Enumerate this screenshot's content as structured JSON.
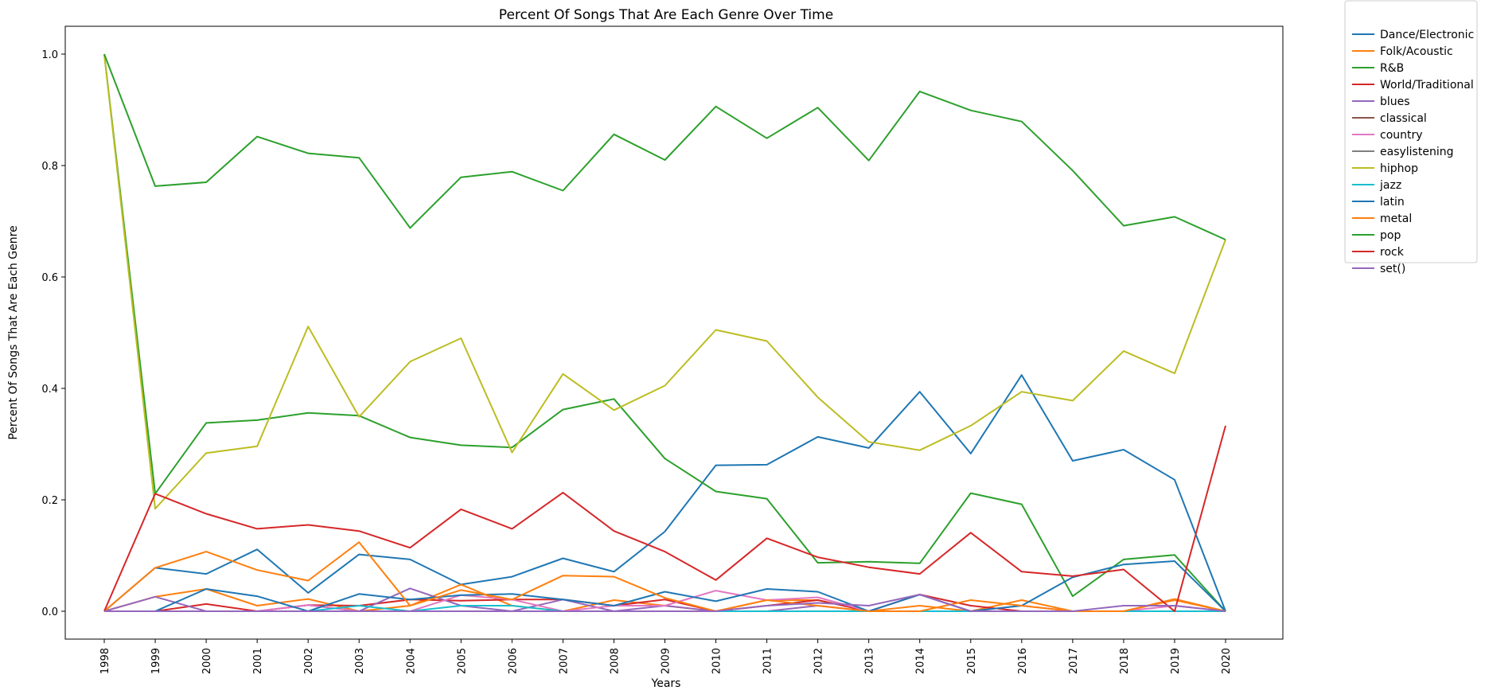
{
  "chart_data": {
    "type": "line",
    "title": "Percent Of Songs That Are Each Genre Over Time",
    "xlabel": "Years",
    "ylabel": "Percent Of Songs That Are Each Genre",
    "x": [
      "1998",
      "1999",
      "2000",
      "2001",
      "2002",
      "2003",
      "2004",
      "2005",
      "2006",
      "2007",
      "2008",
      "2009",
      "2010",
      "2011",
      "2012",
      "2013",
      "2014",
      "2015",
      "2016",
      "2017",
      "2018",
      "2019",
      "2020"
    ],
    "ylim": [
      -0.05,
      1.05
    ],
    "yticks": [
      0.0,
      0.2,
      0.4,
      0.6,
      0.8,
      1.0
    ],
    "ytick_labels": [
      "0.0",
      "0.2",
      "0.4",
      "0.6",
      "0.8",
      "1.0"
    ],
    "grid": false,
    "legend_position": "outside-top-right",
    "series": [
      {
        "name": "Dance/Electronic",
        "color": "#1f77b4",
        "values": [
          0,
          0.078,
          0.067,
          0.111,
          0.033,
          0.102,
          0.093,
          0.048,
          0.062,
          0.095,
          0.071,
          0.143,
          0.262,
          0.263,
          0.313,
          0.293,
          0.394,
          0.283,
          0.424,
          0.27,
          0.29,
          0.236,
          0
        ]
      },
      {
        "name": "Folk/Acoustic",
        "color": "#ff7f0e",
        "values": [
          0,
          0.026,
          0.04,
          0.01,
          0.022,
          0,
          0.01,
          0.048,
          0.01,
          0,
          0.02,
          0.01,
          0,
          0.02,
          0.02,
          0,
          0.01,
          0,
          0.02,
          0,
          0,
          0.02,
          0
        ]
      },
      {
        "name": "R&B",
        "color": "#2ca02c",
        "values": [
          1.0,
          0.211,
          0.338,
          0.343,
          0.356,
          0.351,
          0.312,
          0.298,
          0.294,
          0.362,
          0.381,
          0.274,
          0.215,
          0.202,
          0.087,
          0.089,
          0.086,
          0.212,
          0.192,
          0.027,
          0.093,
          0.101,
          0
        ]
      },
      {
        "name": "World/Traditional",
        "color": "#d62728",
        "values": [
          0,
          0,
          0.013,
          0,
          0.011,
          0.01,
          0.021,
          0.019,
          0.021,
          0.021,
          0.01,
          0.021,
          0,
          0.01,
          0.02,
          0,
          0.03,
          0.01,
          0,
          0,
          0,
          0,
          0
        ]
      },
      {
        "name": "blues",
        "color": "#9467bd",
        "values": [
          0,
          0.026,
          0,
          0,
          0.011,
          0,
          0.041,
          0.01,
          0,
          0.021,
          0,
          0.01,
          0,
          0,
          0.01,
          0,
          0,
          0,
          0,
          0,
          0,
          0,
          0
        ]
      },
      {
        "name": "classical",
        "color": "#8c564b",
        "values": [
          0,
          0,
          0,
          0,
          0,
          0,
          0,
          0,
          0,
          0,
          0,
          0,
          0,
          0,
          0,
          0,
          0,
          0,
          0,
          0,
          0,
          0,
          0
        ]
      },
      {
        "name": "country",
        "color": "#e377c2",
        "values": [
          0,
          0,
          0,
          0,
          0.011,
          0,
          0,
          0.029,
          0.021,
          0,
          0.01,
          0.01,
          0.037,
          0.02,
          0.025,
          0,
          0.03,
          0,
          0.01,
          0,
          0,
          0.01,
          0
        ]
      },
      {
        "name": "easylistening",
        "color": "#7f7f7f",
        "values": [
          0,
          0,
          0,
          0,
          0,
          0,
          0,
          0,
          0,
          0,
          0,
          0,
          0,
          0,
          0,
          0,
          0,
          0,
          0,
          0,
          0,
          0,
          0
        ]
      },
      {
        "name": "hiphop",
        "color": "#bcbd22",
        "values": [
          1.0,
          0.184,
          0.284,
          0.296,
          0.511,
          0.349,
          0.448,
          0.49,
          0.285,
          0.426,
          0.361,
          0.405,
          0.505,
          0.485,
          0.384,
          0.304,
          0.289,
          0.333,
          0.394,
          0.378,
          0.467,
          0.427,
          0.667
        ]
      },
      {
        "name": "jazz",
        "color": "#17becf",
        "values": [
          0,
          0,
          0,
          0,
          0,
          0.01,
          0,
          0.01,
          0.01,
          0,
          0,
          0,
          0,
          0,
          0,
          0,
          0,
          0,
          0,
          0,
          0,
          0,
          0
        ]
      },
      {
        "name": "latin",
        "color": "#1f77b4",
        "values": [
          0,
          0,
          0.04,
          0.027,
          0,
          0.031,
          0.021,
          0.029,
          0.031,
          0.021,
          0.01,
          0.035,
          0.018,
          0.04,
          0.035,
          0,
          0.03,
          0,
          0.01,
          0.061,
          0.084,
          0.09,
          0
        ]
      },
      {
        "name": "metal",
        "color": "#ff7f0e",
        "values": [
          0,
          0.078,
          0.107,
          0.074,
          0.055,
          0.124,
          0.01,
          0.038,
          0.021,
          0.064,
          0.062,
          0.024,
          0,
          0.02,
          0.01,
          0,
          0,
          0.02,
          0.01,
          0,
          0,
          0.022,
          0
        ]
      },
      {
        "name": "pop",
        "color": "#2ca02c",
        "values": [
          1.0,
          0.763,
          0.77,
          0.852,
          0.822,
          0.814,
          0.688,
          0.779,
          0.789,
          0.755,
          0.856,
          0.81,
          0.906,
          0.849,
          0.904,
          0.809,
          0.933,
          0.899,
          0.879,
          0.791,
          0.692,
          0.708,
          0.667
        ]
      },
      {
        "name": "rock",
        "color": "#d62728",
        "values": [
          0,
          0.211,
          0.175,
          0.148,
          0.155,
          0.144,
          0.114,
          0.183,
          0.148,
          0.213,
          0.144,
          0.107,
          0.056,
          0.131,
          0.097,
          0.079,
          0.067,
          0.141,
          0.071,
          0.063,
          0.075,
          0,
          0.333
        ]
      },
      {
        "name": "set()",
        "color": "#9467bd",
        "values": [
          0,
          0,
          0,
          0,
          0,
          0,
          0,
          0,
          0,
          0,
          0,
          0,
          0,
          0.01,
          0.015,
          0.01,
          0.03,
          0,
          0,
          0,
          0.01,
          0.01,
          0
        ]
      }
    ]
  }
}
